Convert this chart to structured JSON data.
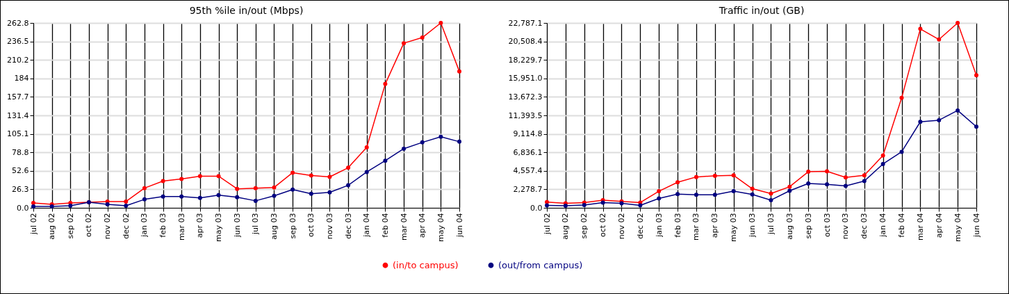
{
  "chart_data": [
    {
      "type": "line",
      "title": "95th %ile in/out (Mbps)",
      "categories": [
        "jul 02",
        "aug 02",
        "sep 02",
        "oct 02",
        "nov 02",
        "dec 02",
        "jan 03",
        "feb 03",
        "mar 03",
        "apr 03",
        "may 03",
        "jun 03",
        "jul 03",
        "aug 03",
        "sep 03",
        "oct 03",
        "nov 03",
        "dec 03",
        "jan 04",
        "feb 04",
        "mar 04",
        "apr 04",
        "may 04",
        "jun 04"
      ],
      "series": [
        {
          "name": "(in/to campus)",
          "color": "#ff0000",
          "values": [
            7,
            5,
            7,
            8,
            9,
            9,
            28,
            38,
            41,
            45,
            45,
            27,
            28,
            29,
            50,
            46,
            44,
            57,
            86,
            176,
            234,
            242,
            262.8,
            194
          ]
        },
        {
          "name": "(out/from campus)",
          "color": "#000080",
          "values": [
            2,
            2,
            3,
            8,
            5,
            3,
            12,
            16,
            16,
            14,
            18,
            15,
            10,
            17,
            26,
            20,
            22,
            32,
            51,
            67,
            84,
            93,
            101,
            94
          ]
        }
      ],
      "ylim": [
        0,
        262.8
      ],
      "yticks": [
        {
          "value": 0,
          "label": "0.0"
        },
        26.3,
        52.6,
        78.8,
        105.1,
        131.4,
        157.7,
        184.0,
        210.2,
        236.5,
        262.8
      ],
      "grid": true,
      "legend": "bottom",
      "marker": "circle",
      "line_style": "solid"
    },
    {
      "type": "line",
      "title": "Traffic in/out (GB)",
      "categories": [
        "jul 02",
        "aug 02",
        "sep 02",
        "oct 02",
        "nov 02",
        "dec 02",
        "jan 03",
        "feb 03",
        "mar 03",
        "apr 03",
        "may 03",
        "jun 03",
        "jul 03",
        "aug 03",
        "sep 03",
        "oct 03",
        "nov 03",
        "dec 03",
        "jan 04",
        "feb 04",
        "mar 04",
        "apr 04",
        "may 04",
        "jun 04"
      ],
      "series": [
        {
          "name": "(in/to campus)",
          "color": "#ff0000",
          "values": [
            700,
            550,
            650,
            950,
            800,
            650,
            2050,
            3150,
            3800,
            3950,
            4000,
            2350,
            1750,
            2600,
            4450,
            4500,
            3750,
            4000,
            6450,
            13550,
            22050,
            20750,
            22787.1,
            16350
          ]
        },
        {
          "name": "(out/from campus)",
          "color": "#000080",
          "values": [
            300,
            250,
            350,
            650,
            550,
            300,
            1150,
            1700,
            1600,
            1600,
            2050,
            1650,
            950,
            2100,
            3000,
            2900,
            2700,
            3300,
            5400,
            6900,
            10600,
            10800,
            12000,
            10000
          ]
        }
      ],
      "ylim": [
        0,
        22787.1
      ],
      "yticks": [
        {
          "value": 0,
          "label": "0.0"
        },
        {
          "value": 2278.7,
          "label": "2,278.7"
        },
        {
          "value": 4557.4,
          "label": "4,557.4"
        },
        {
          "value": 6836.1,
          "label": "6,836.1"
        },
        {
          "value": 9114.8,
          "label": "9,114.8"
        },
        {
          "value": 11393.5,
          "label": "11,393.5"
        },
        {
          "value": 13672.3,
          "label": "13,672.3"
        },
        {
          "value": 15951.0,
          "label": "15,951.0"
        },
        {
          "value": 18229.7,
          "label": "18,229.7"
        },
        {
          "value": 20508.4,
          "label": "20,508.4"
        },
        {
          "value": 22787.1,
          "label": "22,787.1"
        }
      ],
      "grid": true,
      "legend": "bottom",
      "marker": "circle",
      "line_style": "solid"
    }
  ]
}
